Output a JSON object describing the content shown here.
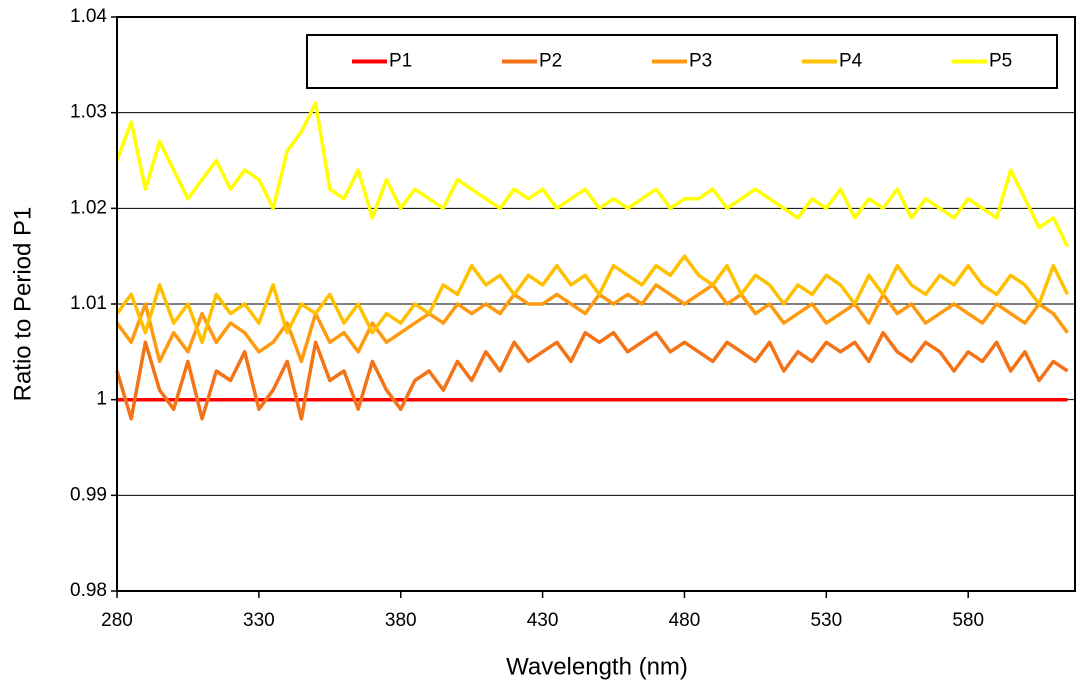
{
  "chart_data": {
    "type": "line",
    "x_label": "Wavelength (nm)",
    "y_label": "Ratio to Period  P1",
    "x": [
      280,
      285,
      290,
      295,
      300,
      305,
      310,
      315,
      320,
      325,
      330,
      335,
      340,
      345,
      350,
      355,
      360,
      365,
      370,
      375,
      380,
      385,
      390,
      395,
      400,
      405,
      410,
      415,
      420,
      425,
      430,
      435,
      440,
      445,
      450,
      455,
      460,
      465,
      470,
      475,
      480,
      485,
      490,
      495,
      500,
      505,
      510,
      515,
      520,
      525,
      530,
      535,
      540,
      545,
      550,
      555,
      560,
      565,
      570,
      575,
      580,
      585,
      590,
      595,
      600,
      605,
      610,
      615
    ],
    "xlim": [
      280,
      618
    ],
    "xticks": [
      280,
      330,
      380,
      430,
      480,
      530,
      580
    ],
    "ylim": [
      0.98,
      1.04
    ],
    "yticks": [
      0.98,
      0.99,
      1,
      1.01,
      1.02,
      1.03,
      1.04
    ],
    "grid": true,
    "legend": "top",
    "series": [
      {
        "name": "P1",
        "color": "#ff0000",
        "values": [
          1,
          1,
          1,
          1,
          1,
          1,
          1,
          1,
          1,
          1,
          1,
          1,
          1,
          1,
          1,
          1,
          1,
          1,
          1,
          1,
          1,
          1,
          1,
          1,
          1,
          1,
          1,
          1,
          1,
          1,
          1,
          1,
          1,
          1,
          1,
          1,
          1,
          1,
          1,
          1,
          1,
          1,
          1,
          1,
          1,
          1,
          1,
          1,
          1,
          1,
          1,
          1,
          1,
          1,
          1,
          1,
          1,
          1,
          1,
          1,
          1,
          1,
          1,
          1,
          1,
          1,
          1,
          1
        ]
      },
      {
        "name": "P2",
        "color": "#f47316",
        "values": [
          1.003,
          0.998,
          1.006,
          1.001,
          0.999,
          1.004,
          0.998,
          1.003,
          1.002,
          1.005,
          0.999,
          1.001,
          1.004,
          0.998,
          1.006,
          1.002,
          1.003,
          0.999,
          1.004,
          1.001,
          0.999,
          1.002,
          1.003,
          1.001,
          1.004,
          1.002,
          1.005,
          1.003,
          1.006,
          1.004,
          1.005,
          1.006,
          1.004,
          1.007,
          1.006,
          1.007,
          1.005,
          1.006,
          1.007,
          1.005,
          1.006,
          1.005,
          1.004,
          1.006,
          1.005,
          1.004,
          1.006,
          1.003,
          1.005,
          1.004,
          1.006,
          1.005,
          1.006,
          1.004,
          1.007,
          1.005,
          1.004,
          1.006,
          1.005,
          1.003,
          1.005,
          1.004,
          1.006,
          1.003,
          1.005,
          1.002,
          1.004,
          1.003
        ]
      },
      {
        "name": "P3",
        "color": "#ff9a10",
        "values": [
          1.008,
          1.006,
          1.01,
          1.004,
          1.007,
          1.005,
          1.009,
          1.006,
          1.008,
          1.007,
          1.005,
          1.006,
          1.008,
          1.004,
          1.009,
          1.006,
          1.007,
          1.005,
          1.008,
          1.006,
          1.007,
          1.008,
          1.009,
          1.008,
          1.01,
          1.009,
          1.01,
          1.009,
          1.011,
          1.01,
          1.01,
          1.011,
          1.01,
          1.009,
          1.011,
          1.01,
          1.011,
          1.01,
          1.012,
          1.011,
          1.01,
          1.011,
          1.012,
          1.01,
          1.011,
          1.009,
          1.01,
          1.008,
          1.009,
          1.01,
          1.008,
          1.009,
          1.01,
          1.008,
          1.011,
          1.009,
          1.01,
          1.008,
          1.009,
          1.01,
          1.009,
          1.008,
          1.01,
          1.009,
          1.008,
          1.01,
          1.009,
          1.007
        ]
      },
      {
        "name": "P4",
        "color": "#ffc000",
        "values": [
          1.009,
          1.011,
          1.007,
          1.012,
          1.008,
          1.01,
          1.006,
          1.011,
          1.009,
          1.01,
          1.008,
          1.012,
          1.007,
          1.01,
          1.009,
          1.011,
          1.008,
          1.01,
          1.007,
          1.009,
          1.008,
          1.01,
          1.009,
          1.012,
          1.011,
          1.014,
          1.012,
          1.013,
          1.011,
          1.013,
          1.012,
          1.014,
          1.012,
          1.013,
          1.011,
          1.014,
          1.013,
          1.012,
          1.014,
          1.013,
          1.015,
          1.013,
          1.012,
          1.014,
          1.011,
          1.013,
          1.012,
          1.01,
          1.012,
          1.011,
          1.013,
          1.012,
          1.01,
          1.013,
          1.011,
          1.014,
          1.012,
          1.011,
          1.013,
          1.012,
          1.014,
          1.012,
          1.011,
          1.013,
          1.012,
          1.01,
          1.014,
          1.011
        ]
      },
      {
        "name": "P5",
        "color": "#ffff00",
        "values": [
          1.025,
          1.029,
          1.022,
          1.027,
          1.024,
          1.021,
          1.023,
          1.025,
          1.022,
          1.024,
          1.023,
          1.02,
          1.026,
          1.028,
          1.031,
          1.022,
          1.021,
          1.024,
          1.019,
          1.023,
          1.02,
          1.022,
          1.021,
          1.02,
          1.023,
          1.022,
          1.021,
          1.02,
          1.022,
          1.021,
          1.022,
          1.02,
          1.021,
          1.022,
          1.02,
          1.021,
          1.02,
          1.021,
          1.022,
          1.02,
          1.021,
          1.021,
          1.022,
          1.02,
          1.021,
          1.022,
          1.021,
          1.02,
          1.019,
          1.021,
          1.02,
          1.022,
          1.019,
          1.021,
          1.02,
          1.022,
          1.019,
          1.021,
          1.02,
          1.019,
          1.021,
          1.02,
          1.019,
          1.024,
          1.021,
          1.018,
          1.019,
          1.016
        ]
      }
    ]
  }
}
